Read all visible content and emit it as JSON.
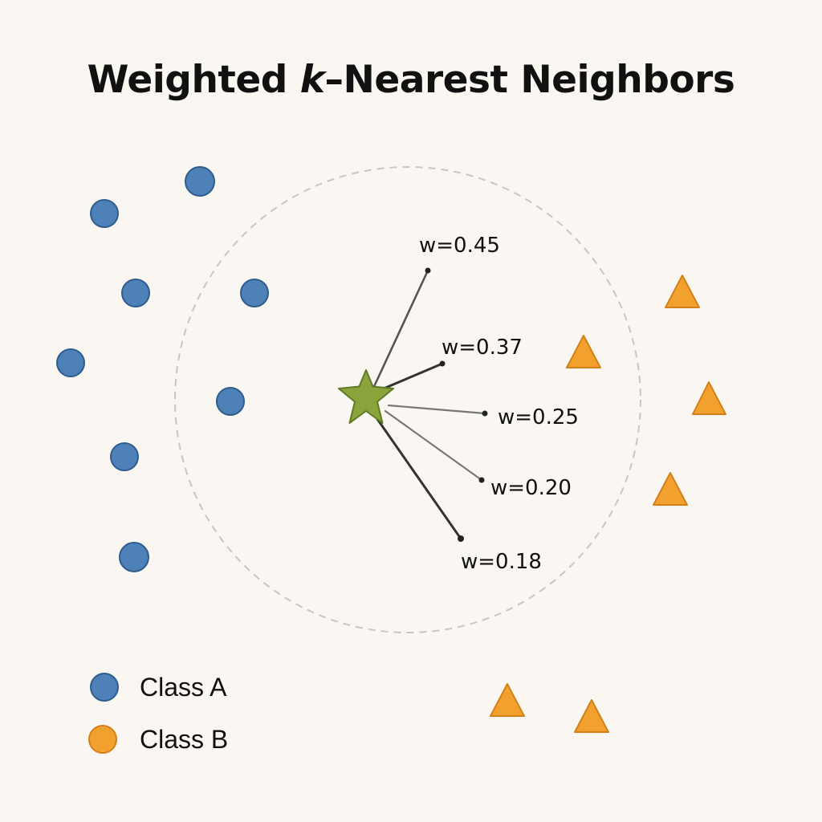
{
  "title": {
    "prefix": "Weighted ",
    "k": "k",
    "suffix": "–Nearest Neighbors"
  },
  "colors": {
    "background": "#faf7f2",
    "class_a_fill": "#4e81b8",
    "class_a_stroke": "#2e5c8c",
    "class_b_fill": "#f2a12e",
    "class_b_stroke": "#d4801a",
    "query_fill": "#8aa43c",
    "query_stroke": "#5f7a24",
    "radius_line": "#c8c6c2"
  },
  "shapes": {
    "class_a": "circle",
    "class_b": "triangle",
    "query": "star"
  },
  "neighbors": [
    {
      "weight_label": "w=0.45",
      "weight": 0.45
    },
    {
      "weight_label": "w=0.37",
      "weight": 0.37
    },
    {
      "weight_label": "w=0.25",
      "weight": 0.25
    },
    {
      "weight_label": "w=0.20",
      "weight": 0.2
    },
    {
      "weight_label": "w=0.18",
      "weight": 0.18
    }
  ],
  "legend": [
    {
      "label": "Class A",
      "marker": "circle",
      "color": "#4e81b8"
    },
    {
      "label": "Class B",
      "marker": "circle",
      "color": "#f2a12e"
    }
  ]
}
